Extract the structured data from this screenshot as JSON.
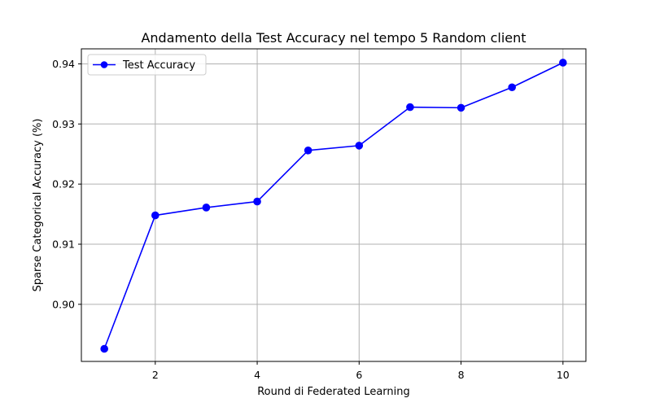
{
  "chart_data": {
    "type": "line",
    "title": "Andamento della Test Accuracy nel tempo 5 Random client",
    "xlabel": "Round di Federated Learning",
    "ylabel": "Sparse Categorical Accuracy (%)",
    "xlim": [
      0.55,
      10.45
    ],
    "ylim": [
      0.8905,
      0.9425
    ],
    "xticks": [
      2,
      4,
      6,
      8,
      10
    ],
    "xtick_labels": [
      "2",
      "4",
      "6",
      "8",
      "10"
    ],
    "yticks": [
      0.9,
      0.91,
      0.92,
      0.93,
      0.94
    ],
    "ytick_labels": [
      "0.90",
      "0.91",
      "0.92",
      "0.93",
      "0.94"
    ],
    "grid": true,
    "legend_position": "top-left",
    "series": [
      {
        "name": "Test Accuracy",
        "color": "#0000ff",
        "marker": "circle",
        "x": [
          1,
          2,
          3,
          4,
          5,
          6,
          7,
          8,
          9,
          10
        ],
        "y": [
          0.8926,
          0.9148,
          0.9161,
          0.9171,
          0.9256,
          0.9264,
          0.9328,
          0.9327,
          0.9361,
          0.9402
        ]
      }
    ]
  }
}
